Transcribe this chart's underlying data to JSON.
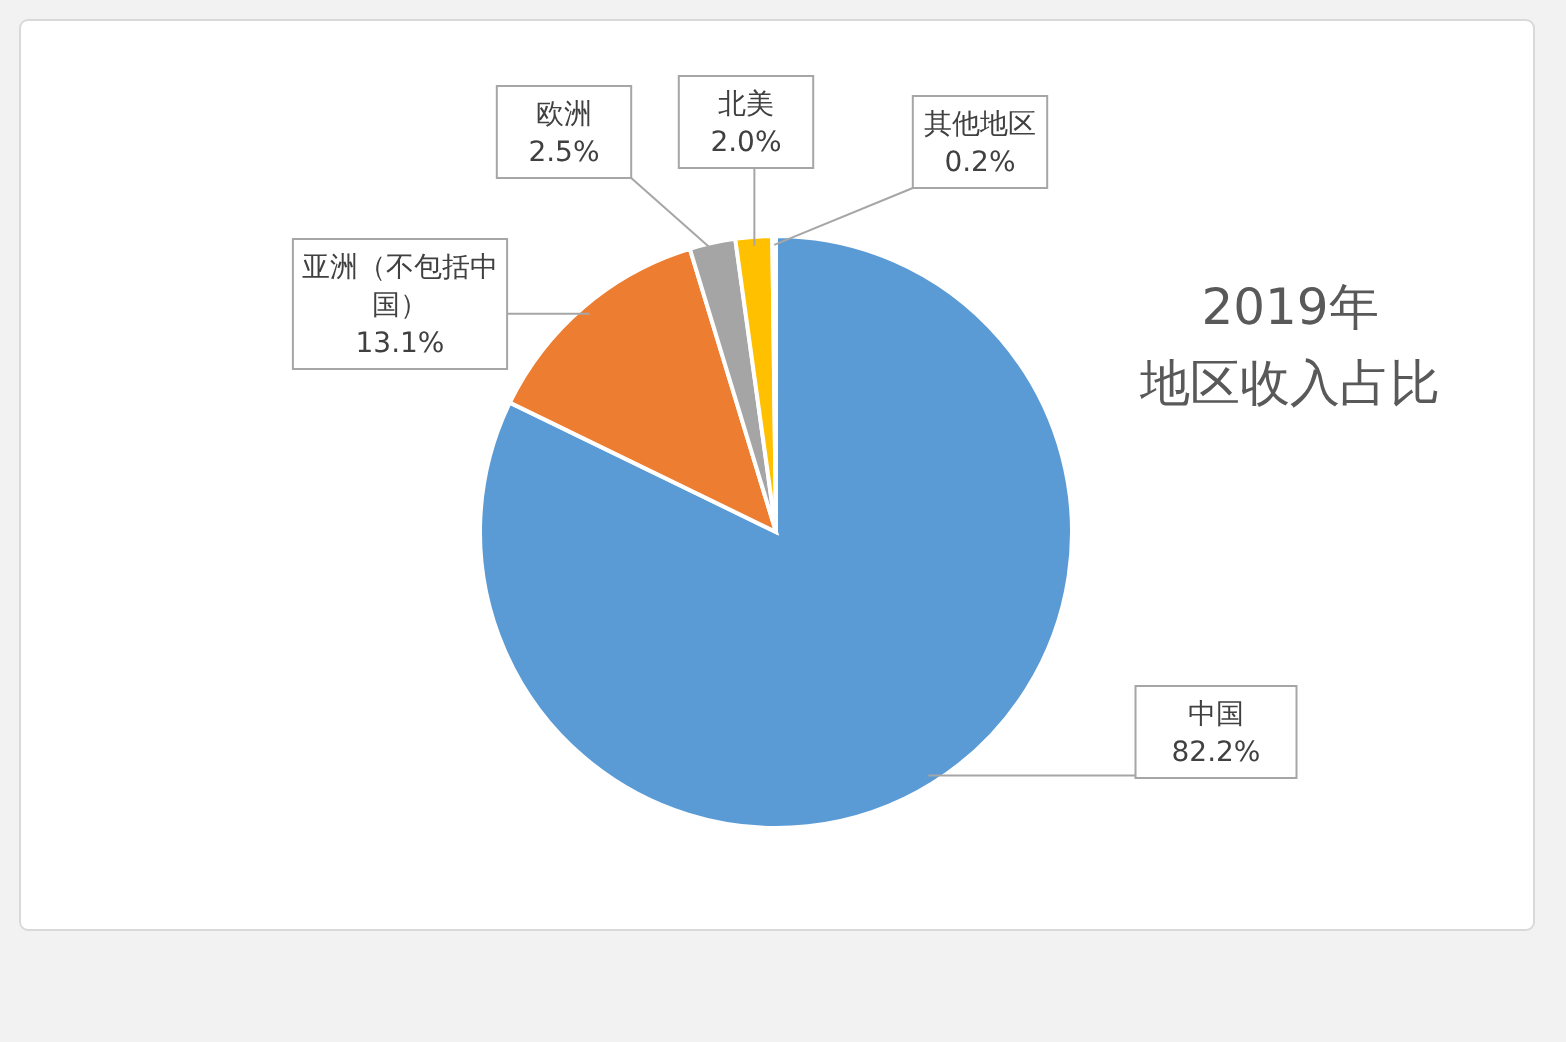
{
  "chart_data": {
    "type": "pie",
    "title": "2019年地区收入占比",
    "categories": [
      "中国",
      "亚洲（不包括中国）",
      "欧洲",
      "北美",
      "其他地区"
    ],
    "values": [
      82.2,
      13.1,
      2.5,
      2.0,
      0.2
    ],
    "value_labels": [
      "82.2%",
      "13.1%",
      "2.5%",
      "2.0%",
      "0.2%"
    ],
    "colors": [
      "#5b9bd5",
      "#ed7d31",
      "#a5a5a5",
      "#ffc000",
      "#4472c4"
    ]
  }
}
